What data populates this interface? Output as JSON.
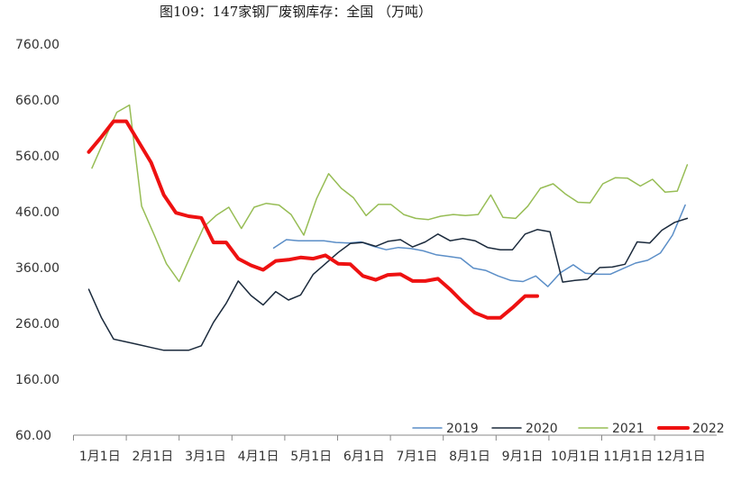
{
  "chart_data": {
    "type": "line",
    "title": "图109：147家钢厂废钢库存：全国 （万吨）",
    "xlabel": "",
    "ylabel": "",
    "ylim": [
      60,
      760
    ],
    "yticks": [
      60,
      160,
      260,
      360,
      460,
      560,
      660,
      760
    ],
    "ytick_labels": [
      "60.00",
      "160.00",
      "260.00",
      "360.00",
      "460.00",
      "560.00",
      "660.00",
      "760.00"
    ],
    "xlim": [
      0,
      11.62
    ],
    "xticks": [
      0,
      1,
      2,
      3,
      4,
      5,
      6,
      7,
      8,
      9,
      10,
      11
    ],
    "xtick_labels": [
      "1月1日",
      "2月1日",
      "3月1日",
      "4月1日",
      "5月1日",
      "6月1日",
      "7月1日",
      "8月1日",
      "9月1日",
      "10月1日",
      "11月1日",
      "12月1日"
    ],
    "grid": false,
    "legend_position": "bottom-right",
    "series": [
      {
        "name": "2019",
        "color": "#5b8ec7",
        "width": 1.5,
        "x": [
          3.79,
          4.03,
          4.26,
          4.5,
          4.74,
          4.97,
          5.21,
          5.44,
          5.68,
          5.92,
          6.15,
          6.39,
          6.62,
          6.86,
          7.1,
          7.33,
          7.57,
          7.8,
          8.04,
          8.28,
          8.51,
          8.75,
          8.98,
          9.22,
          9.46,
          9.69,
          9.93,
          10.16,
          10.4,
          10.64,
          10.87,
          11.11,
          11.34,
          11.58
        ],
        "y": [
          395,
          410,
          408,
          408,
          408,
          405,
          404,
          406,
          398,
          392,
          396,
          394,
          390,
          383,
          380,
          377,
          359,
          355,
          345,
          337,
          335,
          345,
          326,
          351,
          365,
          350,
          348,
          348,
          358,
          368,
          373,
          386,
          418,
          472
        ]
      },
      {
        "name": "2020",
        "color": "#1b2a3c",
        "width": 1.5,
        "x": [
          0.29,
          0.53,
          0.76,
          1.0,
          1.24,
          1.47,
          1.71,
          1.94,
          2.18,
          2.42,
          2.65,
          2.89,
          3.12,
          3.36,
          3.59,
          3.83,
          4.07,
          4.3,
          4.54,
          4.77,
          5.01,
          5.24,
          5.48,
          5.72,
          5.95,
          6.19,
          6.42,
          6.66,
          6.9,
          7.13,
          7.37,
          7.6,
          7.84,
          8.08,
          8.31,
          8.55,
          8.78,
          9.02,
          9.26,
          9.49,
          9.73,
          9.96,
          10.2,
          10.44,
          10.67,
          10.91,
          11.14,
          11.38,
          11.62
        ],
        "y": [
          321,
          270,
          232,
          227,
          222,
          217,
          212,
          212,
          212,
          220,
          262,
          296,
          336,
          310,
          293,
          317,
          302,
          311,
          348,
          367,
          387,
          403,
          405,
          398,
          407,
          410,
          397,
          406,
          420,
          408,
          412,
          408,
          396,
          392,
          392,
          420,
          428,
          424,
          334,
          337,
          339,
          360,
          361,
          366,
          406,
          404,
          427,
          441,
          448
        ]
      },
      {
        "name": "2021",
        "color": "#97bd55",
        "width": 1.5,
        "x": [
          0.35,
          0.59,
          0.82,
          1.06,
          1.29,
          1.53,
          1.76,
          2.0,
          2.24,
          2.47,
          2.71,
          2.94,
          3.18,
          3.42,
          3.65,
          3.89,
          4.12,
          4.36,
          4.6,
          4.83,
          5.07,
          5.3,
          5.54,
          5.77,
          6.01,
          6.25,
          6.48,
          6.72,
          6.95,
          7.19,
          7.42,
          7.66,
          7.9,
          8.13,
          8.37,
          8.6,
          8.84,
          9.08,
          9.31,
          9.55,
          9.78,
          10.02,
          10.26,
          10.49,
          10.73,
          10.96,
          11.2,
          11.43,
          11.62
        ],
        "y": [
          538,
          590,
          638,
          651,
          470,
          418,
          367,
          335,
          386,
          433,
          454,
          468,
          430,
          468,
          475,
          472,
          455,
          418,
          483,
          528,
          502,
          485,
          453,
          473,
          473,
          455,
          448,
          446,
          452,
          455,
          453,
          455,
          490,
          450,
          448,
          470,
          502,
          510,
          492,
          477,
          476,
          510,
          521,
          520,
          506,
          518,
          495,
          497,
          544
        ]
      },
      {
        "name": "2022",
        "color": "#ee1111",
        "width": 4,
        "x": [
          0.29,
          0.53,
          0.76,
          1.0,
          1.24,
          1.47,
          1.71,
          1.94,
          2.18,
          2.42,
          2.65,
          2.89,
          3.12,
          3.36,
          3.59,
          3.83,
          4.07,
          4.3,
          4.54,
          4.77,
          5.01,
          5.24,
          5.48,
          5.72,
          5.95,
          6.19,
          6.42,
          6.66,
          6.9,
          7.13,
          7.37,
          7.6,
          7.84,
          8.08,
          8.31,
          8.55,
          8.78
        ],
        "y": [
          567,
          594,
          622,
          622,
          584,
          548,
          490,
          458,
          452,
          449,
          405,
          405,
          376,
          364,
          356,
          372,
          374,
          378,
          376,
          382,
          367,
          366,
          345,
          338,
          347,
          348,
          336,
          336,
          340,
          321,
          298,
          279,
          270,
          270,
          288,
          309,
          309
        ]
      }
    ]
  }
}
